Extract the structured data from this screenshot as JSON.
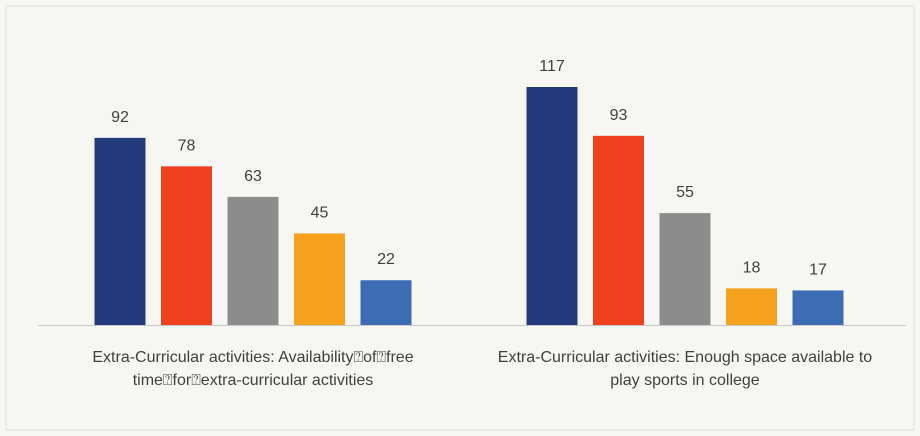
{
  "chart_data": {
    "type": "bar",
    "categories": [
      "Extra-Curricular activities: Availability⍰of⍰free time⍰for⍰extra-curricular activities",
      "Extra-Curricular activities: Enough space available to play sports in college"
    ],
    "series": [
      {
        "color": "#213a7c",
        "values": [
          92,
          117
        ]
      },
      {
        "color": "#ef4120",
        "values": [
          78,
          93
        ]
      },
      {
        "color": "#8c8c8c",
        "values": [
          63,
          55
        ]
      },
      {
        "color": "#f6a21f",
        "values": [
          45,
          18
        ]
      },
      {
        "color": "#3c6db3",
        "values": [
          22,
          17
        ]
      }
    ]
  }
}
